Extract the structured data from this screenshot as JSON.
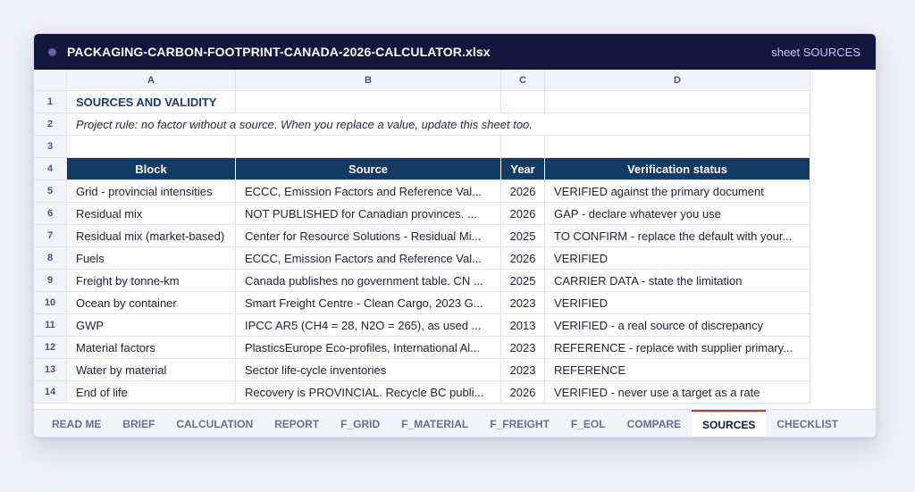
{
  "window": {
    "filename": "PACKAGING-CARBON-FOOTPRINT-CANADA-2026-CALCULATOR.xlsx",
    "sheet_label": "sheet SOURCES"
  },
  "columns": [
    "A",
    "B",
    "C",
    "D"
  ],
  "row_numbers": [
    "1",
    "2",
    "3",
    "4",
    "5",
    "6",
    "7",
    "8",
    "9",
    "10",
    "11",
    "12",
    "13",
    "14"
  ],
  "sheet": {
    "title": "SOURCES AND VALIDITY",
    "rule": "Project rule: no factor without a source. When you replace a value, update this sheet too.",
    "headers": {
      "block": "Block",
      "source": "Source",
      "year": "Year",
      "status": "Verification status"
    },
    "rows": [
      {
        "block": "Grid - provincial intensities",
        "source": "ECCC, Emission Factors and Reference Val...",
        "year": "2026",
        "status": "VERIFIED against the primary document"
      },
      {
        "block": "Residual mix",
        "source": "NOT PUBLISHED for Canadian provinces. ...",
        "year": "2026",
        "status": "GAP - declare whatever you use"
      },
      {
        "block": "Residual mix (market-based)",
        "source": "Center for Resource Solutions - Residual Mi...",
        "year": "2025",
        "status": "TO CONFIRM - replace the default with your..."
      },
      {
        "block": "Fuels",
        "source": "ECCC, Emission Factors and Reference Val...",
        "year": "2026",
        "status": "VERIFIED"
      },
      {
        "block": "Freight by tonne-km",
        "source": "Canada publishes no government table. CN ...",
        "year": "2025",
        "status": "CARRIER DATA - state the limitation"
      },
      {
        "block": "Ocean by container",
        "source": "Smart Freight Centre - Clean Cargo, 2023 G...",
        "year": "2023",
        "status": "VERIFIED"
      },
      {
        "block": "GWP",
        "source": "IPCC AR5 (CH4 = 28, N2O = 265), as used ...",
        "year": "2013",
        "status": "VERIFIED - a real source of discrepancy"
      },
      {
        "block": "Material factors",
        "source": "PlasticsEurope Eco-profiles, International Al...",
        "year": "2023",
        "status": "REFERENCE - replace with supplier primary..."
      },
      {
        "block": "Water by material",
        "source": "Sector life-cycle inventories",
        "year": "2023",
        "status": "REFERENCE"
      },
      {
        "block": "End of life",
        "source": "Recovery is PROVINCIAL. Recycle BC publi...",
        "year": "2026",
        "status": "VERIFIED - never use a target as a rate"
      }
    ]
  },
  "tabs": [
    {
      "label": "READ ME",
      "active": false
    },
    {
      "label": "BRIEF",
      "active": false
    },
    {
      "label": "CALCULATION",
      "active": false
    },
    {
      "label": "REPORT",
      "active": false
    },
    {
      "label": "F_GRID",
      "active": false
    },
    {
      "label": "F_MATERIAL",
      "active": false
    },
    {
      "label": "F_FREIGHT",
      "active": false
    },
    {
      "label": "F_EOL",
      "active": false
    },
    {
      "label": "COMPARE",
      "active": false
    },
    {
      "label": "SOURCES",
      "active": true
    },
    {
      "label": "CHECKLIST",
      "active": false
    }
  ],
  "colors": {
    "title_bar": "#13173f",
    "header_fill": "#123a63",
    "active_tab_accent": "#c0392b"
  }
}
